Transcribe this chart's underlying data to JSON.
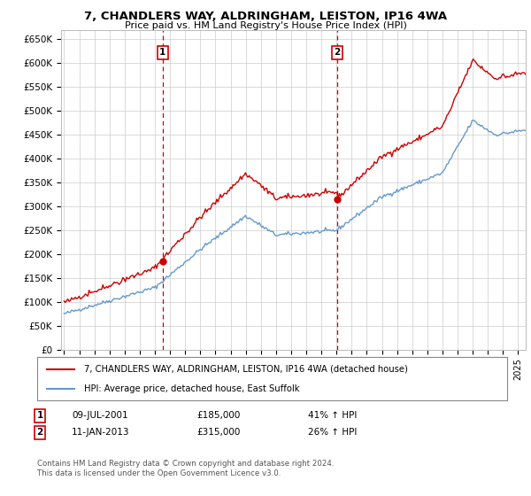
{
  "title": "7, CHANDLERS WAY, ALDRINGHAM, LEISTON, IP16 4WA",
  "subtitle": "Price paid vs. HM Land Registry's House Price Index (HPI)",
  "ylim": [
    0,
    670000
  ],
  "yticks": [
    0,
    50000,
    100000,
    150000,
    200000,
    250000,
    300000,
    350000,
    400000,
    450000,
    500000,
    550000,
    600000,
    650000
  ],
  "ytick_labels": [
    "£0",
    "£50K",
    "£100K",
    "£150K",
    "£200K",
    "£250K",
    "£300K",
    "£350K",
    "£400K",
    "£450K",
    "£500K",
    "£550K",
    "£600K",
    "£650K"
  ],
  "sale1_date": 2001.52,
  "sale1_price": 185000,
  "sale1_label": "1",
  "sale2_date": 2013.03,
  "sale2_price": 315000,
  "sale2_label": "2",
  "line_color_red": "#cc0000",
  "line_color_blue": "#6699cc",
  "vline_color": "#cc0000",
  "grid_color": "#cccccc",
  "background_color": "#ffffff",
  "legend_line1": "7, CHANDLERS WAY, ALDRINGHAM, LEISTON, IP16 4WA (detached house)",
  "legend_line2": "HPI: Average price, detached house, East Suffolk",
  "annotation1_date": "09-JUL-2001",
  "annotation1_price": "£185,000",
  "annotation1_hpi": "41% ↑ HPI",
  "annotation2_date": "11-JAN-2013",
  "annotation2_price": "£315,000",
  "annotation2_hpi": "26% ↑ HPI",
  "footer": "Contains HM Land Registry data © Crown copyright and database right 2024.\nThis data is licensed under the Open Government Licence v3.0.",
  "xmin": 1994.8,
  "xmax": 2025.5
}
